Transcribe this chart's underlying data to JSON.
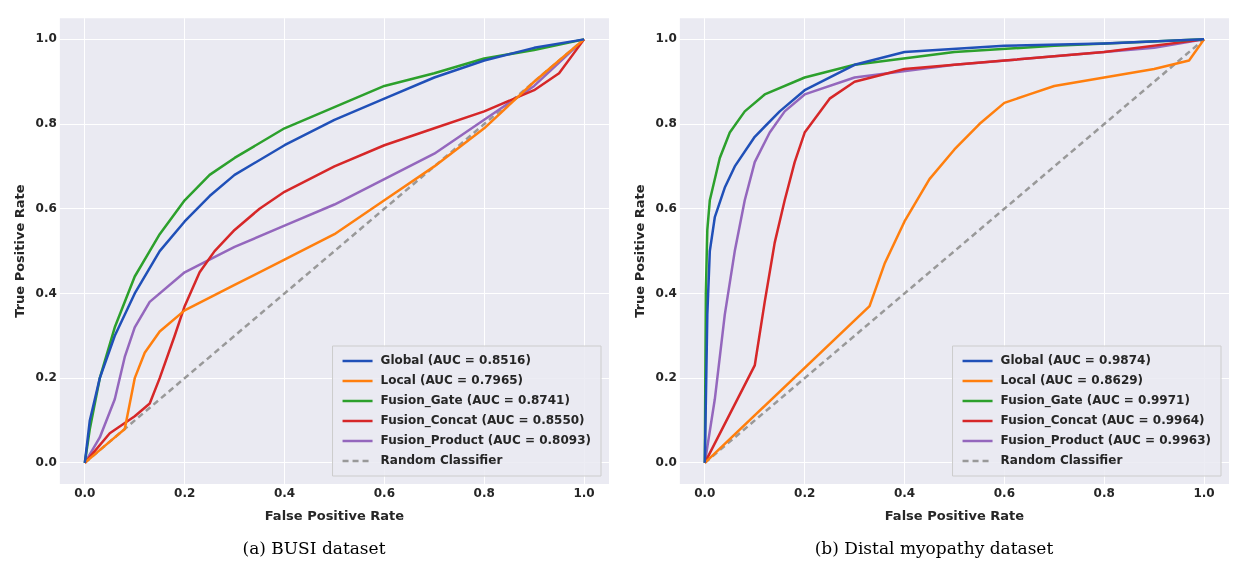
{
  "chart_data": [
    {
      "type": "line",
      "xlabel": "False Positive Rate",
      "ylabel": "True Positive Rate",
      "annotations": [
        "(a) BUSI dataset"
      ],
      "xlim": [
        -0.05,
        1.05
      ],
      "ylim": [
        -0.05,
        1.05
      ],
      "xticks": [
        {
          "value": 0,
          "label": "0.0"
        },
        {
          "value": 0.2,
          "label": "0.2"
        },
        {
          "value": 0.4,
          "label": "0.4"
        },
        {
          "value": 0.6,
          "label": "0.6"
        },
        {
          "value": 0.8,
          "label": "0.8"
        },
        {
          "value": 1,
          "label": "1.0"
        }
      ],
      "yticks": [
        {
          "value": 0,
          "label": "0.0"
        },
        {
          "value": 0.2,
          "label": "0.2"
        },
        {
          "value": 0.4,
          "label": "0.4"
        },
        {
          "value": 0.6,
          "label": "0.6"
        },
        {
          "value": 0.8,
          "label": "0.8"
        },
        {
          "value": 1,
          "label": "1.0"
        }
      ],
      "grid": true,
      "legend": "bottom right",
      "line_style": "solid",
      "marker": "none",
      "series": [
        {
          "name": "Global (AUC = 0.8516)",
          "color": "#2050b8",
          "x": [
            0,
            0.01,
            0.03,
            0.06,
            0.1,
            0.15,
            0.2,
            0.25,
            0.3,
            0.4,
            0.5,
            0.6,
            0.7,
            0.8,
            0.9,
            1
          ],
          "values": [
            0,
            0.1,
            0.2,
            0.3,
            0.4,
            0.5,
            0.57,
            0.63,
            0.68,
            0.75,
            0.81,
            0.86,
            0.91,
            0.95,
            0.98,
            1
          ]
        },
        {
          "name": "Local (AUC = 0.7965)",
          "color": "#ff7f0e",
          "x": [
            0,
            0.05,
            0.08,
            0.1,
            0.12,
            0.15,
            0.2,
            0.3,
            0.4,
            0.5,
            0.55,
            0.6,
            0.7,
            0.8,
            0.9,
            0.95,
            1
          ],
          "values": [
            0,
            0.05,
            0.08,
            0.2,
            0.26,
            0.31,
            0.36,
            0.42,
            0.48,
            0.54,
            0.58,
            0.62,
            0.7,
            0.79,
            0.9,
            0.95,
            1
          ]
        },
        {
          "name": "Fusion_Gate (AUC = 0.8741)",
          "color": "#2ca02c",
          "x": [
            0,
            0.01,
            0.03,
            0.06,
            0.1,
            0.15,
            0.2,
            0.25,
            0.3,
            0.4,
            0.5,
            0.6,
            0.7,
            0.8,
            0.9,
            1
          ],
          "values": [
            0,
            0.08,
            0.2,
            0.32,
            0.44,
            0.54,
            0.62,
            0.68,
            0.72,
            0.79,
            0.84,
            0.89,
            0.92,
            0.955,
            0.975,
            1
          ]
        },
        {
          "name": "Fusion_Concat (AUC = 0.8550)",
          "color": "#d62728",
          "x": [
            0,
            0.05,
            0.1,
            0.13,
            0.15,
            0.18,
            0.2,
            0.23,
            0.26,
            0.3,
            0.35,
            0.4,
            0.5,
            0.6,
            0.7,
            0.8,
            0.9,
            0.95,
            1
          ],
          "values": [
            0,
            0.07,
            0.11,
            0.14,
            0.2,
            0.3,
            0.37,
            0.45,
            0.5,
            0.55,
            0.6,
            0.64,
            0.7,
            0.75,
            0.79,
            0.83,
            0.88,
            0.92,
            1
          ]
        },
        {
          "name": "Fusion_Product (AUC = 0.8093)",
          "color": "#9467bd",
          "x": [
            0,
            0.03,
            0.06,
            0.08,
            0.1,
            0.13,
            0.2,
            0.3,
            0.4,
            0.5,
            0.6,
            0.7,
            0.8,
            0.9,
            1
          ],
          "values": [
            0,
            0.06,
            0.15,
            0.25,
            0.32,
            0.38,
            0.45,
            0.51,
            0.56,
            0.61,
            0.67,
            0.73,
            0.81,
            0.89,
            1
          ]
        },
        {
          "name": "Random Classifier",
          "color": "#999999",
          "line_style": "dashed",
          "x": [
            0,
            1
          ],
          "values": [
            0,
            1
          ]
        }
      ]
    },
    {
      "type": "line",
      "xlabel": "False Positive Rate",
      "ylabel": "True Positive Rate",
      "annotations": [
        "(b) Distal myopathy dataset"
      ],
      "xlim": [
        -0.05,
        1.05
      ],
      "ylim": [
        -0.05,
        1.05
      ],
      "xticks": [
        {
          "value": 0,
          "label": "0.0"
        },
        {
          "value": 0.2,
          "label": "0.2"
        },
        {
          "value": 0.4,
          "label": "0.4"
        },
        {
          "value": 0.6,
          "label": "0.6"
        },
        {
          "value": 0.8,
          "label": "0.8"
        },
        {
          "value": 1,
          "label": "1.0"
        }
      ],
      "yticks": [
        {
          "value": 0,
          "label": "0.0"
        },
        {
          "value": 0.2,
          "label": "0.2"
        },
        {
          "value": 0.4,
          "label": "0.4"
        },
        {
          "value": 0.6,
          "label": "0.6"
        },
        {
          "value": 0.8,
          "label": "0.8"
        },
        {
          "value": 1,
          "label": "1.0"
        }
      ],
      "grid": true,
      "legend": "bottom right",
      "line_style": "solid",
      "marker": "none",
      "series": [
        {
          "name": "Global (AUC = 0.9874)",
          "color": "#2050b8",
          "x": [
            0,
            0.005,
            0.01,
            0.02,
            0.04,
            0.06,
            0.1,
            0.15,
            0.2,
            0.3,
            0.4,
            0.6,
            0.8,
            1
          ],
          "values": [
            0,
            0.35,
            0.5,
            0.58,
            0.65,
            0.7,
            0.77,
            0.83,
            0.88,
            0.94,
            0.97,
            0.985,
            0.99,
            1
          ]
        },
        {
          "name": "Local (AUC = 0.8629)",
          "color": "#ff7f0e",
          "x": [
            0,
            0.33,
            0.36,
            0.4,
            0.45,
            0.5,
            0.55,
            0.6,
            0.65,
            0.7,
            0.8,
            0.9,
            0.97,
            1
          ],
          "values": [
            0,
            0.37,
            0.47,
            0.57,
            0.67,
            0.74,
            0.8,
            0.85,
            0.87,
            0.89,
            0.91,
            0.93,
            0.95,
            1
          ]
        },
        {
          "name": "Fusion_Gate (AUC = 0.9971)",
          "color": "#2ca02c",
          "x": [
            0,
            0.002,
            0.005,
            0.01,
            0.03,
            0.05,
            0.08,
            0.12,
            0.2,
            0.3,
            0.5,
            0.7,
            1
          ],
          "values": [
            0,
            0.4,
            0.55,
            0.62,
            0.72,
            0.78,
            0.83,
            0.87,
            0.91,
            0.94,
            0.97,
            0.985,
            1
          ]
        },
        {
          "name": "Fusion_Concat (AUC = 0.9964)",
          "color": "#d62728",
          "x": [
            0,
            0.1,
            0.12,
            0.14,
            0.16,
            0.18,
            0.2,
            0.25,
            0.3,
            0.4,
            0.6,
            0.8,
            1
          ],
          "values": [
            0,
            0.23,
            0.38,
            0.52,
            0.62,
            0.71,
            0.78,
            0.86,
            0.9,
            0.93,
            0.95,
            0.97,
            1
          ]
        },
        {
          "name": "Fusion_Product (AUC = 0.9963)",
          "color": "#9467bd",
          "x": [
            0,
            0.02,
            0.04,
            0.06,
            0.08,
            0.1,
            0.13,
            0.16,
            0.2,
            0.3,
            0.5,
            0.7,
            0.9,
            1
          ],
          "values": [
            0,
            0.15,
            0.35,
            0.5,
            0.62,
            0.71,
            0.78,
            0.83,
            0.87,
            0.91,
            0.94,
            0.96,
            0.98,
            1
          ]
        },
        {
          "name": "Random Classifier",
          "color": "#999999",
          "line_style": "dashed",
          "x": [
            0,
            1
          ],
          "values": [
            0,
            1
          ]
        }
      ]
    }
  ]
}
